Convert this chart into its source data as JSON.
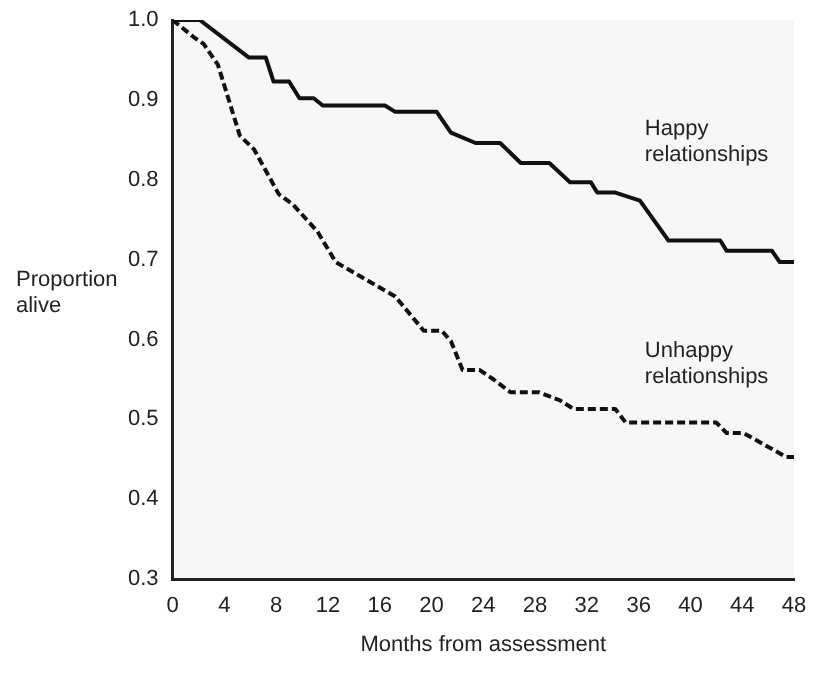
{
  "chart_data": {
    "type": "line",
    "xlabel": "Months from assessment",
    "ylabel": "Proportion alive",
    "xlim": [
      0,
      48
    ],
    "xticks": [
      0,
      4,
      8,
      12,
      16,
      20,
      24,
      28,
      32,
      36,
      40,
      44,
      48
    ],
    "ylim": [
      0.3,
      1.0
    ],
    "yticks": [
      0.3,
      0.4,
      0.5,
      0.6,
      0.7,
      0.8,
      0.9,
      {
        "value": 1.0,
        "label": "1.0"
      }
    ],
    "grid": false,
    "legend": false,
    "marker": "none",
    "series": [
      {
        "name": "Happy\nrelationships",
        "color": "#111111",
        "line_style": "solid",
        "x": [
          0,
          2.1,
          5.9,
          7.2,
          7.8,
          9.0,
          9.8,
          10.9,
          11.6,
          16.4,
          17.2,
          20.4,
          21.5,
          23.4,
          25.3,
          26.9,
          29.1,
          30.7,
          32.3,
          32.8,
          34.2,
          36.1,
          38.3,
          42.3,
          42.8,
          46.3,
          46.9,
          48
        ],
        "values": [
          1.0,
          1.0,
          0.953,
          0.953,
          0.923,
          0.923,
          0.902,
          0.902,
          0.893,
          0.893,
          0.885,
          0.885,
          0.859,
          0.846,
          0.846,
          0.821,
          0.821,
          0.797,
          0.797,
          0.784,
          0.784,
          0.774,
          0.724,
          0.724,
          0.711,
          0.711,
          0.697,
          0.697
        ]
      },
      {
        "name": "Unhappy\nrelationships",
        "color": "#111111",
        "line_style": "dashed",
        "x": [
          0,
          1.6,
          2.4,
          3.5,
          5.2,
          6.3,
          8.2,
          9.3,
          11.2,
          12.6,
          17.2,
          19.4,
          20.8,
          21.5,
          22.4,
          23.7,
          24.8,
          26.1,
          28.3,
          29.9,
          31.0,
          34.2,
          35.0,
          42.0,
          42.8,
          44.1,
          47.4,
          48
        ],
        "values": [
          1.0,
          0.979,
          0.97,
          0.944,
          0.855,
          0.838,
          0.782,
          0.769,
          0.735,
          0.697,
          0.654,
          0.611,
          0.611,
          0.598,
          0.562,
          0.562,
          0.55,
          0.534,
          0.534,
          0.524,
          0.513,
          0.513,
          0.496,
          0.496,
          0.483,
          0.483,
          0.453,
          0.453
        ]
      }
    ]
  }
}
